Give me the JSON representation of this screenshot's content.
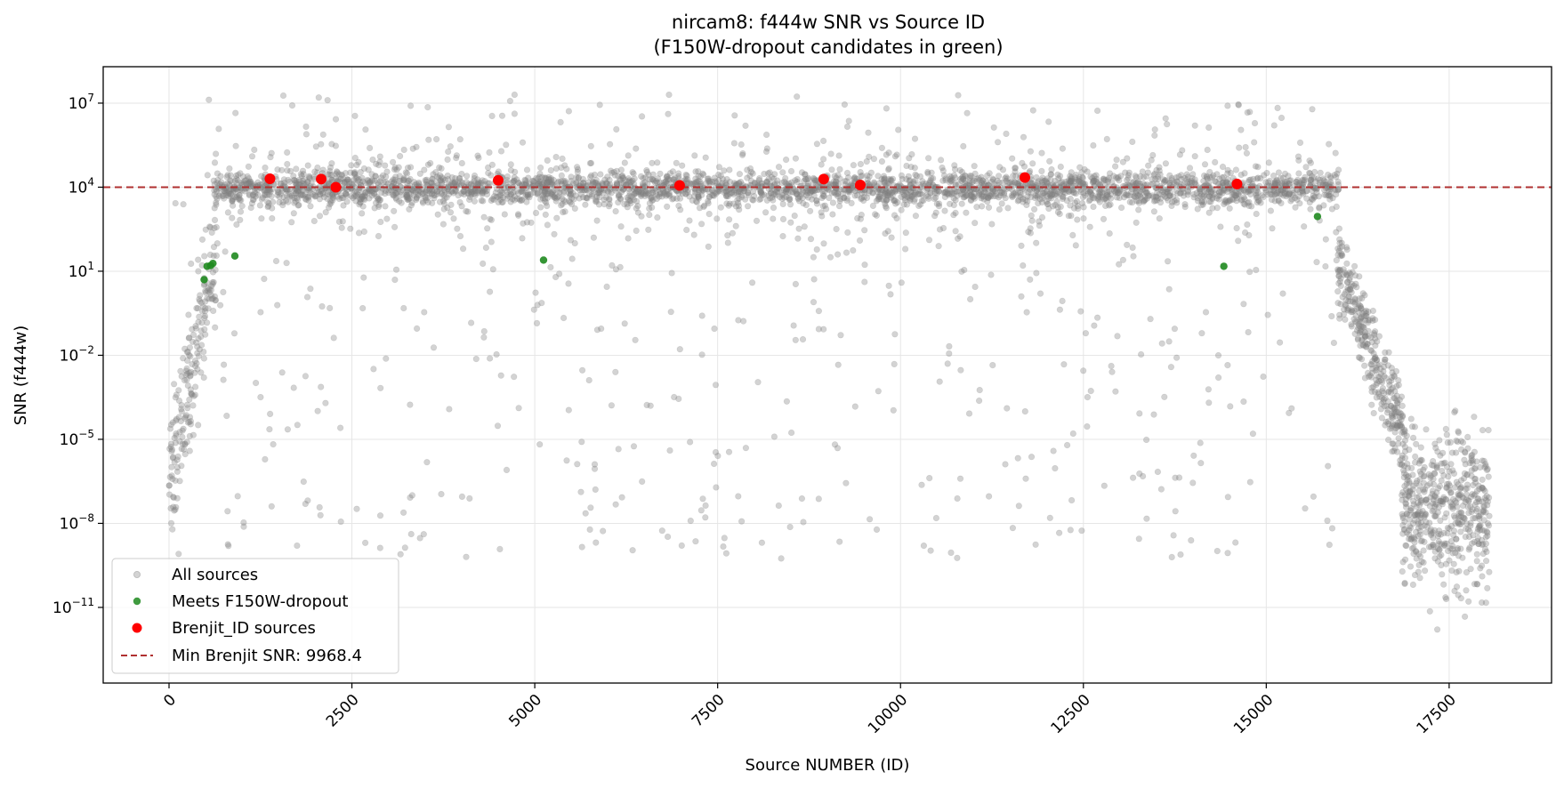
{
  "chart_data": {
    "type": "scatter",
    "title": "nircam8: f444w SNR vs Source ID",
    "subtitle": "(F150W-dropout candidates in green)",
    "xlabel": "Source NUMBER (ID)",
    "ylabel": "SNR (f444w)",
    "xlim": [
      -900,
      18900
    ],
    "ylim_log10": [
      -13.7,
      8.3
    ],
    "y_scale": "log",
    "x_ticks": [
      0,
      2500,
      5000,
      7500,
      10000,
      12500,
      15000,
      17500
    ],
    "x_tick_labels": [
      "0",
      "2500",
      "5000",
      "7500",
      "10000",
      "12500",
      "15000",
      "17500"
    ],
    "x_tick_rotation_deg": -45,
    "y_tick_exponents": [
      7,
      4,
      1,
      -2,
      -5,
      -8,
      -11
    ],
    "y_tick_base": "10",
    "grid": true,
    "legend_position": "lower-left",
    "background_series": {
      "name": "All sources",
      "color": "#808080",
      "opacity": 0.35,
      "note_values": "approximately 18000 sources; dense band near SNR 1e4 for IDs 600-16000, scattered outliers 1e-9 to 1e7, low-SNR clusters at IDs 0-600 and 16000-18000"
    },
    "dropout_series": {
      "name": "Meets F150W-dropout",
      "color": "#1f8a1f",
      "points": [
        {
          "x": 480,
          "y": 5.0
        },
        {
          "x": 520,
          "y": 15.0
        },
        {
          "x": 570,
          "y": 16.0
        },
        {
          "x": 600,
          "y": 19.0
        },
        {
          "x": 900,
          "y": 35.0
        },
        {
          "x": 5120,
          "y": 25.0
        },
        {
          "x": 14420,
          "y": 15.0
        },
        {
          "x": 15700,
          "y": 900.0
        }
      ]
    },
    "brenjit_series": {
      "name": "Brenjit_ID sources",
      "color": "#ff0000",
      "points": [
        {
          "x": 1380,
          "y": 20000
        },
        {
          "x": 2080,
          "y": 19500
        },
        {
          "x": 2280,
          "y": 9968.4
        },
        {
          "x": 4500,
          "y": 17500
        },
        {
          "x": 6980,
          "y": 11500
        },
        {
          "x": 8950,
          "y": 19500
        },
        {
          "x": 9450,
          "y": 12000
        },
        {
          "x": 11700,
          "y": 22000
        },
        {
          "x": 14600,
          "y": 13000
        }
      ]
    },
    "threshold_line": {
      "name": "Min Brenjit SNR: 9968.4",
      "y": 9968.4,
      "color": "#b03030",
      "style": "dashed"
    }
  }
}
